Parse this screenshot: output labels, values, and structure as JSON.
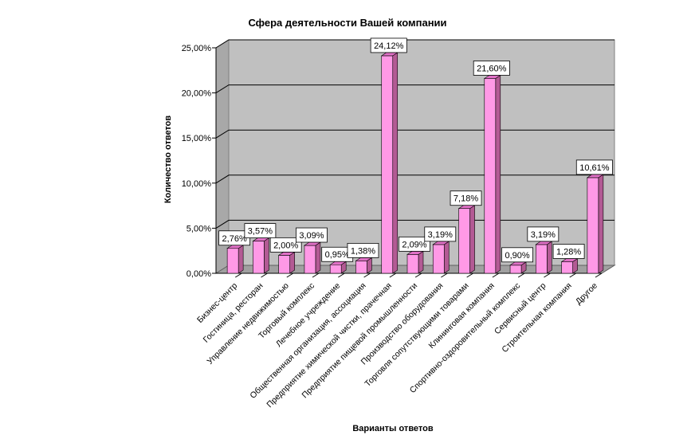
{
  "chart_data": {
    "type": "bar",
    "title": "Сфера деятельности Вашей компании",
    "xlabel": "Варианты ответов",
    "ylabel": "Количество ответов",
    "ylim": [
      0,
      25
    ],
    "yticks": [
      "0,00%",
      "5,00%",
      "10,00%",
      "15,00%",
      "20,00%",
      "25,00%"
    ],
    "grid": true,
    "legend": "none",
    "colors": {
      "bar_front": "#ff99e6",
      "bar_side": "#b35a94",
      "bar_top": "#e070c6",
      "wall": "#c0c0c0",
      "floor": "#a0a0a0"
    },
    "categories": [
      "Бизнес-центр",
      "Гостиница, ресторан",
      "Управление недвижимостью",
      "Торговый комплекс",
      "Лечебное учреждение",
      "Общественная организация, ассоциация",
      "Предприятие химической чистки, прачечная",
      "Предприятие пищевой промышленности",
      "Производство оборудования",
      "Торговля сопутствующими товарами",
      "Клининговая компания",
      "Спортивно-оздоровительный комплекс",
      "Сервисный центр",
      "Строительная компания",
      "Другое"
    ],
    "values": [
      2.76,
      3.57,
      2.0,
      3.09,
      0.95,
      1.38,
      24.12,
      2.09,
      3.19,
      7.18,
      21.6,
      0.9,
      3.19,
      1.28,
      10.61
    ],
    "labels": [
      "2,76%",
      "3,57%",
      "2,00%",
      "3,09%",
      "0,95%",
      "1,38%",
      "24,12%",
      "2,09%",
      "3,19%",
      "7,18%",
      "21,60%",
      "0,90%",
      "3,19%",
      "1,28%",
      "10,61%"
    ]
  }
}
